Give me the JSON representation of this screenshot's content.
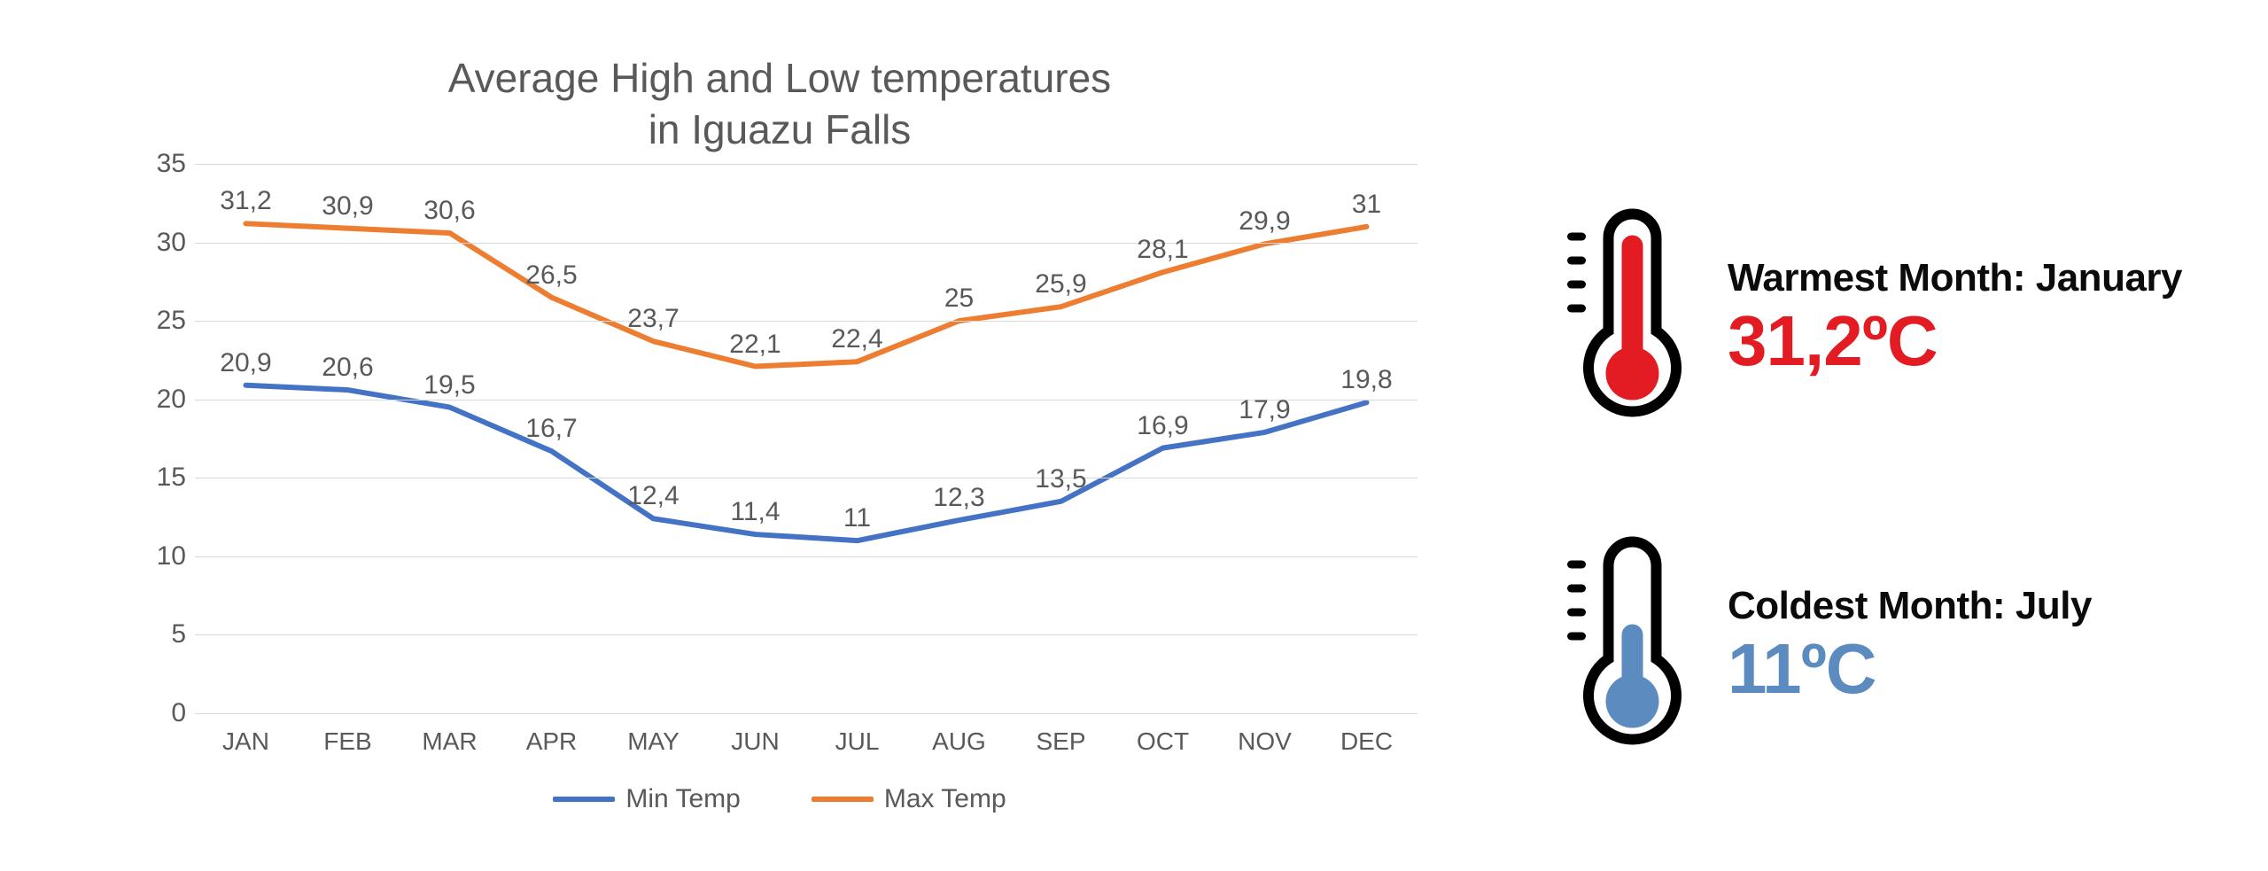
{
  "chart": {
    "type": "line",
    "title_line1": "Average High and Low temperatures",
    "title_line2": "in Iguazu Falls",
    "title_fontsize": 46,
    "title_color": "#595959",
    "categories": [
      "JAN",
      "FEB",
      "MAR",
      "APR",
      "MAY",
      "JUN",
      "JUL",
      "AUG",
      "SEP",
      "OCT",
      "NOV",
      "DEC"
    ],
    "series": [
      {
        "name": "Min Temp",
        "color": "#4472c4",
        "line_width": 6,
        "values": [
          20.9,
          20.6,
          19.5,
          16.7,
          12.4,
          11.4,
          11,
          12.3,
          13.5,
          16.9,
          17.9,
          19.8
        ],
        "labels": [
          "20,9",
          "20,6",
          "19,5",
          "16,7",
          "12,4",
          "11,4",
          "11",
          "12,3",
          "13,5",
          "16,9",
          "17,9",
          "19,8"
        ]
      },
      {
        "name": "Max Temp",
        "color": "#ed7d31",
        "line_width": 6,
        "values": [
          31.2,
          30.9,
          30.6,
          26.5,
          23.7,
          22.1,
          22.4,
          25,
          25.9,
          28.1,
          29.9,
          31
        ],
        "labels": [
          "31,2",
          "30,9",
          "30,6",
          "26,5",
          "23,7",
          "22,1",
          "22,4",
          "25",
          "25,9",
          "28,1",
          "29,9",
          "31"
        ]
      }
    ],
    "ylim": [
      0,
      35
    ],
    "ytick_step": 5,
    "yticks": [
      0,
      5,
      10,
      15,
      20,
      25,
      30,
      35
    ],
    "grid_color": "#d9d9d9",
    "axis_label_color": "#595959",
    "axis_label_fontsize": 30,
    "data_label_fontsize": 30,
    "background_color": "#ffffff",
    "legend": {
      "items": [
        {
          "label": "Min Temp",
          "color": "#4472c4"
        },
        {
          "label": "Max Temp",
          "color": "#ed7d31"
        }
      ]
    }
  },
  "callouts": {
    "warm": {
      "label": "Warmest Month: January",
      "value": "31,2ºC",
      "value_color": "#e31b23",
      "thermo_fill": "#e31b23"
    },
    "cold": {
      "label": "Coldest Month: July",
      "value": "11ºC",
      "value_color": "#5b8bbf",
      "thermo_fill": "#5b8bbf"
    },
    "label_color": "#0b0b0b",
    "label_fontsize": 44,
    "value_fontsize": 80
  }
}
